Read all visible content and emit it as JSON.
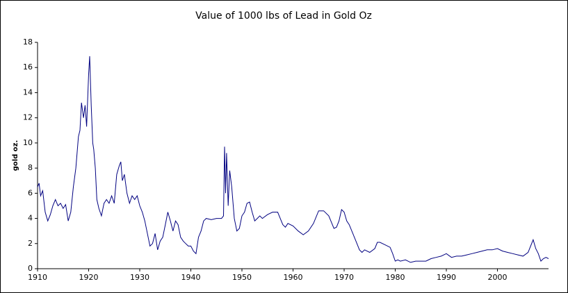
{
  "chart_data": {
    "type": "line",
    "title": "Value of 1000 lbs of Lead in Gold Oz",
    "y_label": "gold oz.",
    "x": [
      1910,
      1910.3,
      1910.6,
      1911,
      1911.5,
      1912,
      1912.5,
      1913,
      1913.5,
      1914,
      1914.5,
      1915,
      1915.5,
      1916,
      1916.5,
      1917,
      1917.5,
      1918,
      1918.3,
      1918.6,
      1919,
      1919.3,
      1919.6,
      1920,
      1920.2,
      1920.5,
      1920.8,
      1921,
      1921.3,
      1921.6,
      1922,
      1922.5,
      1923,
      1923.5,
      1924,
      1924.5,
      1925,
      1925.5,
      1926,
      1926.3,
      1926.6,
      1927,
      1927.5,
      1928,
      1928.5,
      1929,
      1929.5,
      1930,
      1930.5,
      1931,
      1931.5,
      1932,
      1932.5,
      1933,
      1933.5,
      1934,
      1934.5,
      1935,
      1935.5,
      1936,
      1936.5,
      1937,
      1937.5,
      1938,
      1938.5,
      1939,
      1939.5,
      1940,
      1940.5,
      1941,
      1941.5,
      1942,
      1942.5,
      1943,
      1944,
      1945,
      1946,
      1946.4,
      1946.6,
      1946.8,
      1947,
      1947.3,
      1947.6,
      1948,
      1948.5,
      1949,
      1949.5,
      1950,
      1950.5,
      1951,
      1951.5,
      1952,
      1952.5,
      1953,
      1953.5,
      1954,
      1955,
      1956,
      1957,
      1957.5,
      1958,
      1958.5,
      1959,
      1960,
      1961,
      1962,
      1963,
      1964,
      1965,
      1966,
      1967,
      1968,
      1968.5,
      1969,
      1969.5,
      1970,
      1970.5,
      1971,
      1972,
      1972.5,
      1973,
      1973.5,
      1974,
      1975,
      1976,
      1976.5,
      1977,
      1978,
      1979,
      1979.5,
      1980,
      1980.5,
      1981,
      1982,
      1983,
      1984,
      1985,
      1986,
      1987,
      1988,
      1989,
      1990,
      1991,
      1992,
      1993,
      1994,
      1995,
      1996,
      1997,
      1998,
      1999,
      2000,
      2001,
      2002,
      2003,
      2004,
      2005,
      2006,
      2007,
      2007.5,
      2008,
      2008.5,
      2009,
      2009.5,
      2010
    ],
    "series": [
      {
        "color": "#000080",
        "values": [
          6.5,
          6.8,
          5.8,
          6.2,
          4.5,
          3.8,
          4.3,
          5.0,
          5.5,
          5.0,
          5.2,
          4.8,
          5.1,
          3.8,
          4.5,
          6.5,
          8.0,
          10.5,
          11.0,
          13.2,
          12.0,
          13.0,
          11.3,
          15.5,
          16.9,
          13.0,
          10.0,
          9.5,
          8.0,
          5.5,
          4.8,
          4.2,
          5.2,
          5.5,
          5.2,
          5.8,
          5.2,
          7.5,
          8.2,
          8.5,
          7.0,
          7.5,
          6.0,
          5.2,
          5.8,
          5.5,
          5.8,
          5.0,
          4.5,
          3.8,
          2.8,
          1.8,
          2.0,
          2.8,
          1.5,
          2.2,
          2.5,
          3.5,
          4.5,
          3.8,
          3.0,
          3.8,
          3.5,
          2.5,
          2.2,
          2.0,
          1.8,
          1.8,
          1.4,
          1.2,
          2.5,
          3.0,
          3.8,
          4.0,
          3.9,
          4.0,
          4.0,
          4.2,
          9.7,
          6.0,
          9.2,
          5.0,
          7.8,
          6.5,
          4.0,
          3.0,
          3.2,
          4.2,
          4.5,
          5.2,
          5.3,
          4.5,
          3.8,
          4.0,
          4.2,
          4.0,
          4.3,
          4.5,
          4.5,
          4.0,
          3.5,
          3.3,
          3.6,
          3.4,
          3.0,
          2.7,
          3.0,
          3.6,
          4.6,
          4.6,
          4.2,
          3.2,
          3.3,
          3.8,
          4.7,
          4.5,
          3.8,
          3.5,
          2.5,
          2.0,
          1.5,
          1.3,
          1.5,
          1.3,
          1.6,
          2.1,
          2.1,
          1.9,
          1.7,
          1.2,
          0.6,
          0.7,
          0.6,
          0.7,
          0.5,
          0.6,
          0.6,
          0.6,
          0.8,
          0.9,
          1.0,
          1.2,
          0.9,
          1.0,
          1.0,
          1.1,
          1.2,
          1.3,
          1.4,
          1.5,
          1.5,
          1.6,
          1.4,
          1.3,
          1.2,
          1.1,
          1.0,
          1.3,
          2.3,
          1.6,
          1.2,
          0.6,
          0.8,
          0.9,
          0.8
        ]
      }
    ],
    "xlim": [
      1910,
      2010
    ],
    "xticks": [
      1910,
      1920,
      1930,
      1940,
      1950,
      1960,
      1970,
      1980,
      1990,
      2000
    ],
    "ylim": [
      0,
      18
    ],
    "yticks": [
      0,
      2,
      4,
      6,
      8,
      10,
      12,
      14,
      16,
      18
    ]
  }
}
